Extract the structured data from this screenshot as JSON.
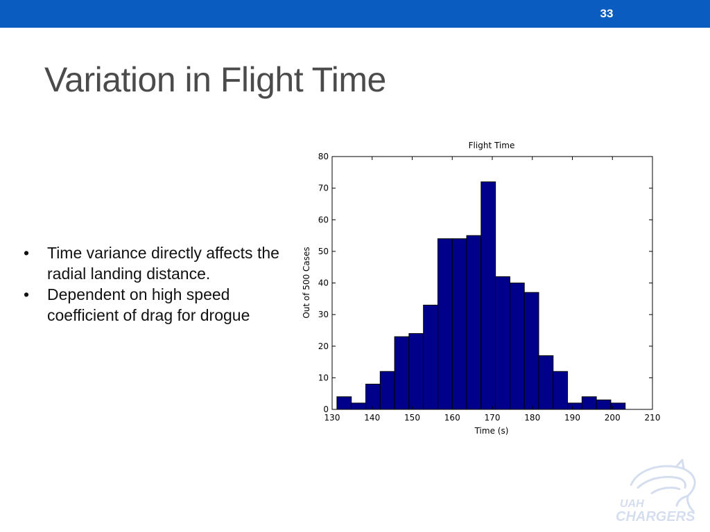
{
  "slide": {
    "number": "33",
    "title": "Variation in Flight Time",
    "accent_color": "#0b5cc1"
  },
  "bullets": [
    "Time variance directly affects the radial landing distance.",
    "Dependent on high speed coefficient of drag for drogue"
  ],
  "logo": {
    "text_top": "UAH",
    "text_bottom": "CHARGERS"
  },
  "chart_data": {
    "type": "bar",
    "title": "Flight Time",
    "xlabel": "Time (s)",
    "ylabel": "Out of 500 Cases",
    "xlim": [
      130,
      210
    ],
    "ylim": [
      0,
      80
    ],
    "xticks": [
      130,
      140,
      150,
      160,
      170,
      180,
      190,
      200,
      210
    ],
    "yticks": [
      0,
      10,
      20,
      30,
      40,
      50,
      60,
      70,
      80
    ],
    "bin_width": 3.6,
    "bins": [
      {
        "start": 131.2,
        "value": 4
      },
      {
        "start": 134.8,
        "value": 2
      },
      {
        "start": 138.4,
        "value": 8
      },
      {
        "start": 142.0,
        "value": 12
      },
      {
        "start": 145.6,
        "value": 23
      },
      {
        "start": 149.2,
        "value": 24
      },
      {
        "start": 152.8,
        "value": 33
      },
      {
        "start": 156.4,
        "value": 54
      },
      {
        "start": 160.0,
        "value": 54
      },
      {
        "start": 163.6,
        "value": 55
      },
      {
        "start": 167.2,
        "value": 72
      },
      {
        "start": 170.8,
        "value": 42
      },
      {
        "start": 174.4,
        "value": 40
      },
      {
        "start": 178.0,
        "value": 37
      },
      {
        "start": 181.6,
        "value": 17
      },
      {
        "start": 185.2,
        "value": 12
      },
      {
        "start": 188.8,
        "value": 2
      },
      {
        "start": 192.4,
        "value": 4
      },
      {
        "start": 196.0,
        "value": 3
      },
      {
        "start": 199.6,
        "value": 2
      }
    ],
    "bar_color": "#00008b",
    "bar_edge_color": "#000000",
    "grid": false
  }
}
